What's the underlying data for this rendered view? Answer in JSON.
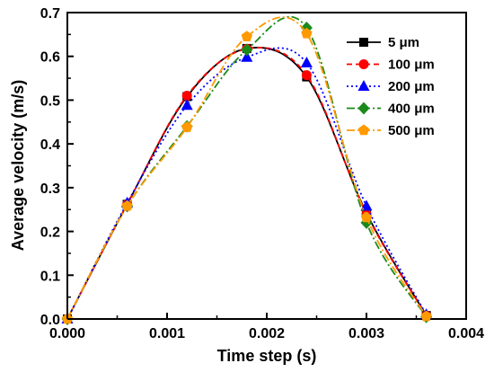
{
  "chart_data": {
    "type": "line",
    "xlabel": "Time step (s)",
    "ylabel": "Average velocity (m/s)",
    "xlim": [
      0,
      0.004
    ],
    "ylim": [
      0,
      0.7
    ],
    "x_ticks": [
      "0.000",
      "0.001",
      "0.002",
      "0.003",
      "0.004"
    ],
    "y_ticks": [
      "0.0",
      "0.1",
      "0.2",
      "0.3",
      "0.4",
      "0.5",
      "0.6",
      "0.7"
    ],
    "grid": false,
    "legend_position": "top-right",
    "series": [
      {
        "name": "5 μm",
        "color": "#000000",
        "marker": "square",
        "line_style": "solid",
        "x": [
          0,
          0.0006,
          0.0012,
          0.0018,
          0.0024,
          0.003,
          0.0036
        ],
        "y": [
          0.0,
          0.262,
          0.508,
          0.618,
          0.553,
          0.242,
          0.008
        ]
      },
      {
        "name": "100 μm",
        "color": "#ff0000",
        "marker": "circle",
        "line_style": "dashed",
        "x": [
          0,
          0.0006,
          0.0012,
          0.0018,
          0.0024,
          0.003,
          0.0036
        ],
        "y": [
          0.0,
          0.262,
          0.51,
          0.617,
          0.557,
          0.24,
          0.008
        ]
      },
      {
        "name": "200 μm",
        "color": "#0000ff",
        "marker": "triangle",
        "line_style": "dotted",
        "x": [
          0,
          0.0006,
          0.0012,
          0.0018,
          0.0024,
          0.003,
          0.0036
        ],
        "y": [
          0.0,
          0.265,
          0.488,
          0.598,
          0.585,
          0.258,
          0.01
        ]
      },
      {
        "name": "400 μm",
        "color": "#1a8a1a",
        "marker": "diamond",
        "line_style": "dashdot",
        "x": [
          0,
          0.0006,
          0.0012,
          0.0018,
          0.0024,
          0.003,
          0.0036
        ],
        "y": [
          0.0,
          0.258,
          0.44,
          0.615,
          0.665,
          0.22,
          0.005
        ]
      },
      {
        "name": "500 μm",
        "color": "#ff9900",
        "marker": "pentagon",
        "line_style": "dashdot",
        "x": [
          0,
          0.0006,
          0.0012,
          0.0018,
          0.0024,
          0.003,
          0.0036
        ],
        "y": [
          0.0,
          0.258,
          0.438,
          0.645,
          0.652,
          0.232,
          0.006
        ]
      }
    ]
  }
}
